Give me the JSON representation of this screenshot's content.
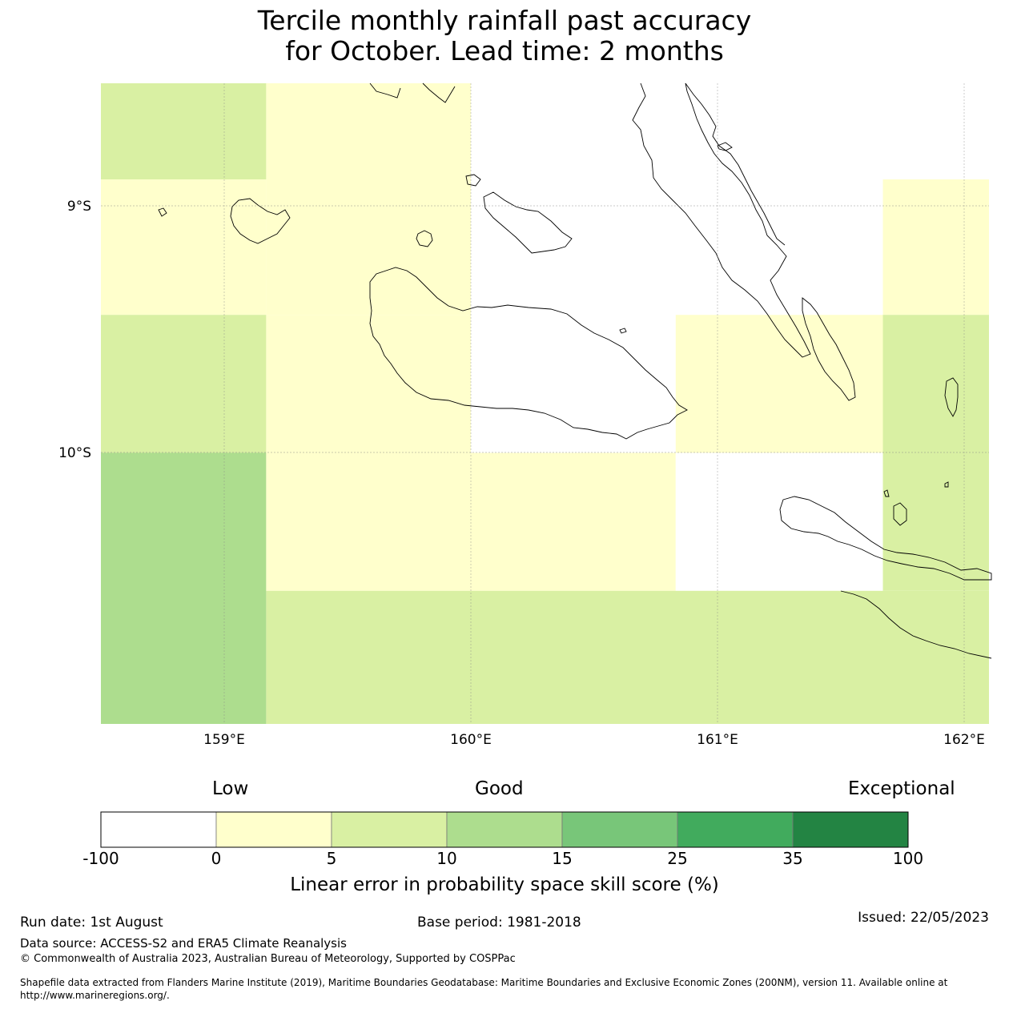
{
  "title": {
    "line1": "Tercile monthly rainfall past accuracy",
    "line2": "for October. Lead time: 2 months"
  },
  "map": {
    "lon_range": [
      158.5,
      162.1
    ],
    "lat_range": [
      -11.1,
      -8.5
    ],
    "lat_labels": [
      "9°S",
      "10°S"
    ],
    "lon_labels": [
      "159°E",
      "160°E",
      "161°E",
      "162°E"
    ],
    "grid_cells": [
      {
        "lon": [
          158.5,
          159.17
        ],
        "lat": [
          -8.5,
          -8.89
        ],
        "bin": "5-10"
      },
      {
        "lon": [
          159.17,
          160.0
        ],
        "lat": [
          -8.5,
          -8.89
        ],
        "bin": "0-5"
      },
      {
        "lon": [
          160.0,
          161.67
        ],
        "lat": [
          -8.5,
          -8.89
        ],
        "bin": "below 0"
      },
      {
        "lon": [
          161.67,
          162.1
        ],
        "lat": [
          -8.5,
          -8.89
        ],
        "bin": "below 0"
      },
      {
        "lon": [
          158.5,
          159.17
        ],
        "lat": [
          -8.89,
          -9.44
        ],
        "bin": "0-5"
      },
      {
        "lon": [
          159.17,
          160.0
        ],
        "lat": [
          -8.89,
          -9.44
        ],
        "bin": "0-5"
      },
      {
        "lon": [
          160.0,
          161.67
        ],
        "lat": [
          -8.89,
          -9.44
        ],
        "bin": "below 0"
      },
      {
        "lon": [
          161.67,
          162.1
        ],
        "lat": [
          -8.89,
          -9.44
        ],
        "bin": "0-5"
      },
      {
        "lon": [
          158.5,
          159.17
        ],
        "lat": [
          -9.44,
          -10.0
        ],
        "bin": "5-10"
      },
      {
        "lon": [
          159.17,
          160.0
        ],
        "lat": [
          -9.44,
          -10.0
        ],
        "bin": "0-5"
      },
      {
        "lon": [
          160.0,
          160.83
        ],
        "lat": [
          -9.44,
          -10.0
        ],
        "bin": "below 0"
      },
      {
        "lon": [
          160.83,
          161.67
        ],
        "lat": [
          -9.44,
          -10.0
        ],
        "bin": "0-5"
      },
      {
        "lon": [
          161.67,
          162.1
        ],
        "lat": [
          -9.44,
          -10.0
        ],
        "bin": "5-10"
      },
      {
        "lon": [
          158.5,
          159.17
        ],
        "lat": [
          -10.0,
          -11.1
        ],
        "bin": "10-15"
      },
      {
        "lon": [
          159.17,
          160.83
        ],
        "lat": [
          -10.0,
          -10.56
        ],
        "bin": "0-5"
      },
      {
        "lon": [
          160.83,
          161.67
        ],
        "lat": [
          -10.0,
          -10.56
        ],
        "bin": "below 0"
      },
      {
        "lon": [
          161.67,
          162.1
        ],
        "lat": [
          -10.0,
          -10.56
        ],
        "bin": "5-10"
      },
      {
        "lon": [
          159.17,
          162.1
        ],
        "lat": [
          -10.56,
          -11.1
        ],
        "bin": "5-10"
      }
    ],
    "bin_colors": {
      "below 0": "#ffffff",
      "0-5": "#ffffcc",
      "5-10": "#d9f0a3",
      "10-15": "#addd8e",
      "15-25": "#78c679",
      "25-35": "#41ab5d",
      "35-100": "#238443"
    }
  },
  "colorbar": {
    "category_labels": [
      "Low",
      "Good",
      "Exceptional"
    ],
    "ticks": [
      "-100",
      "0",
      "5",
      "10",
      "15",
      "25",
      "35",
      "100"
    ],
    "colors": [
      "#ffffff",
      "#ffffcc",
      "#d9f0a3",
      "#addd8e",
      "#78c679",
      "#41ab5d",
      "#238443"
    ],
    "label": "Linear error in probability space skill score (%)"
  },
  "footer": {
    "run_date": "Run date: 1st August",
    "base_period": "Base period: 1981-2018",
    "issued": "Issued: 22/05/2023",
    "data_source": "Data source: ACCESS-S2 and ERA5 Climate Reanalysis",
    "copyright": "© Commonwealth of Australia 2023, Australian Bureau of Meteorology, Supported by COSPPac",
    "shapefile_line1": "Shapefile data extracted from Flanders Marine Institute (2019), Maritime Boundaries Geodatabase: Maritime Boundaries and Exclusive Economic Zones (200NM), version 11. Available online at",
    "shapefile_line2": "http://www.marineregions.org/."
  }
}
